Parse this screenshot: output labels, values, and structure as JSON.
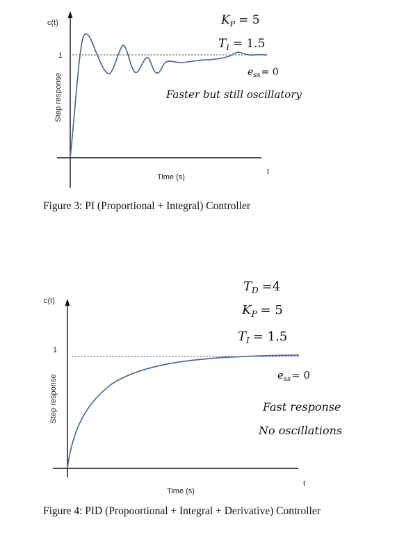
{
  "figures": [
    {
      "caption": "Figure 3: PI (Proportional + Integral) Controller",
      "axis_y_top": "c(t)",
      "axis_y_label": "Step response",
      "axis_x_label": "Time (s)",
      "axis_x_end": "t",
      "ref_tick": "1",
      "params": [
        {
          "sym": "K",
          "sub": "P",
          "rel": "= 5"
        },
        {
          "sym": "T",
          "sub": "I",
          "rel": "= 1.5"
        }
      ],
      "ess": {
        "sym": "e",
        "sub": "ss",
        "rel": "= 0"
      },
      "notes": [
        "Faster but still oscillatory"
      ],
      "line_color": "#4a6a9a"
    },
    {
      "caption": "Figure 4: PID (Propoortional + Integral + Derivative) Controller",
      "axis_y_top": "c(t)",
      "axis_y_label": "Step response",
      "axis_x_label": "Time (s)",
      "axis_x_end": "t",
      "ref_tick": "1",
      "params": [
        {
          "sym": "T",
          "sub": "D",
          "rel": "=4"
        },
        {
          "sym": "K",
          "sub": "P",
          "rel": "= 5"
        },
        {
          "sym": "T",
          "sub": "I",
          "rel": "= 1.5"
        }
      ],
      "ess": {
        "sym": "e",
        "sub": "ss",
        "rel": "= 0"
      },
      "notes": [
        "Fast response",
        "No oscillations"
      ],
      "line_color": "#4a6a9a"
    }
  ]
}
